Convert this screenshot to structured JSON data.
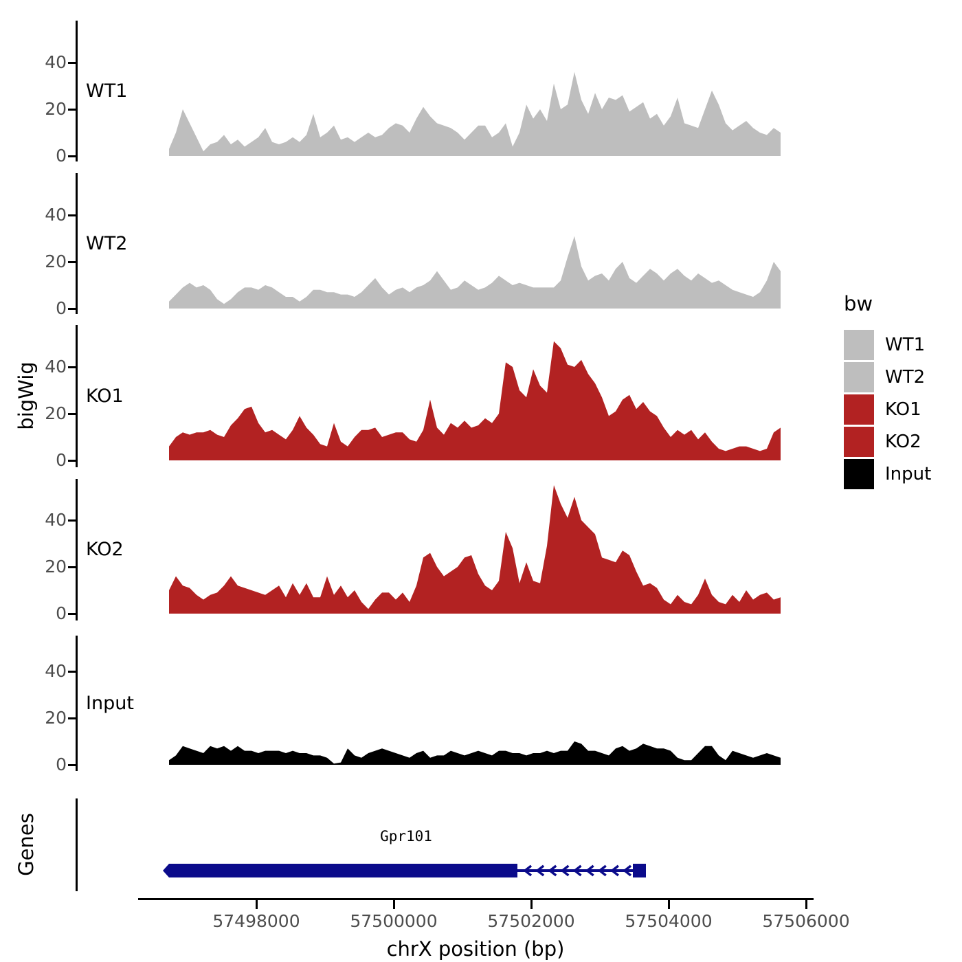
{
  "chart_data": {
    "type": "area",
    "title": "",
    "xlabel": "chrX position (bp)",
    "ylabel": "bigWig",
    "x_start_bp": 57496730,
    "x_step_bp": 100,
    "x_ticks": [
      57498000,
      57500000,
      57502000,
      57504000,
      57506000
    ],
    "x_axis_range_bp": [
      57496280,
      57506110
    ],
    "y_ticks_per_facet": [
      0,
      20,
      40
    ],
    "y_panel_max": 55,
    "grid": "off",
    "legend_position": "right",
    "facets": [
      {
        "label": "WT1",
        "color": "#BEBEBE",
        "values": [
          3,
          10,
          20,
          14,
          8,
          2,
          5,
          6,
          9,
          5,
          7,
          4,
          6,
          8,
          12,
          6,
          5,
          6,
          8,
          6,
          9,
          18,
          8,
          10,
          13,
          7,
          8,
          6,
          8,
          10,
          8,
          9,
          12,
          14,
          13,
          10,
          16,
          21,
          17,
          14,
          13,
          12,
          10,
          7,
          10,
          13,
          13,
          8,
          10,
          14,
          4,
          10,
          22,
          16,
          20,
          15,
          31,
          20,
          22,
          36,
          24,
          18,
          27,
          20,
          25,
          24,
          26,
          19,
          21,
          23,
          16,
          18,
          13,
          17,
          25,
          14,
          13,
          12,
          20,
          28,
          22,
          14,
          11,
          13,
          15,
          12,
          10,
          9,
          12,
          10
        ]
      },
      {
        "label": "WT2",
        "color": "#BEBEBE",
        "values": [
          3,
          6,
          9,
          11,
          9,
          10,
          8,
          4,
          2,
          4,
          7,
          9,
          9,
          8,
          10,
          9,
          7,
          5,
          5,
          3,
          5,
          8,
          8,
          7,
          7,
          6,
          6,
          5,
          7,
          10,
          13,
          9,
          6,
          8,
          9,
          7,
          9,
          10,
          12,
          16,
          12,
          8,
          9,
          12,
          10,
          8,
          9,
          11,
          14,
          12,
          10,
          11,
          10,
          9,
          9,
          9,
          9,
          12,
          22,
          31,
          18,
          12,
          14,
          15,
          12,
          17,
          20,
          13,
          11,
          14,
          17,
          15,
          12,
          15,
          17,
          14,
          12,
          15,
          13,
          11,
          12,
          10,
          8,
          7,
          6,
          5,
          7,
          12,
          20,
          16
        ]
      },
      {
        "label": "KO1",
        "color": "#B22222",
        "values": [
          6,
          10,
          12,
          11,
          12,
          12,
          13,
          11,
          10,
          15,
          18,
          22,
          23,
          16,
          12,
          13,
          11,
          9,
          13,
          19,
          14,
          11,
          7,
          6,
          16,
          8,
          6,
          10,
          13,
          13,
          14,
          10,
          11,
          12,
          12,
          9,
          8,
          13,
          26,
          14,
          11,
          16,
          14,
          17,
          14,
          15,
          18,
          16,
          20,
          42,
          40,
          30,
          27,
          39,
          32,
          29,
          51,
          48,
          41,
          40,
          43,
          37,
          33,
          27,
          19,
          21,
          26,
          28,
          22,
          25,
          21,
          19,
          14,
          10,
          13,
          11,
          13,
          9,
          12,
          8,
          5,
          4,
          5,
          6,
          6,
          5,
          4,
          5,
          12,
          14
        ]
      },
      {
        "label": "KO2",
        "color": "#B22222",
        "values": [
          10,
          16,
          12,
          11,
          8,
          6,
          8,
          9,
          12,
          16,
          12,
          11,
          10,
          9,
          8,
          10,
          12,
          7,
          13,
          8,
          13,
          7,
          7,
          16,
          8,
          12,
          7,
          10,
          5,
          2,
          6,
          9,
          9,
          6,
          9,
          5,
          12,
          24,
          26,
          20,
          16,
          18,
          20,
          24,
          25,
          17,
          12,
          10,
          14,
          35,
          28,
          13,
          22,
          14,
          13,
          29,
          55,
          47,
          41,
          50,
          40,
          37,
          34,
          24,
          23,
          22,
          27,
          25,
          18,
          12,
          13,
          11,
          6,
          4,
          8,
          5,
          4,
          8,
          15,
          8,
          5,
          4,
          8,
          5,
          10,
          6,
          8,
          9,
          6,
          7
        ]
      },
      {
        "label": "Input",
        "color": "#000000",
        "values": [
          2,
          4,
          8,
          7,
          6,
          5,
          8,
          7,
          8,
          6,
          8,
          6,
          6,
          5,
          6,
          6,
          6,
          5,
          6,
          5,
          5,
          4,
          4,
          3,
          0.5,
          1,
          7,
          4,
          3,
          5,
          6,
          7,
          6,
          5,
          4,
          3,
          5,
          6,
          3,
          4,
          4,
          6,
          5,
          4,
          5,
          6,
          5,
          4,
          6,
          6,
          5,
          5,
          4,
          5,
          5,
          6,
          5,
          6,
          6,
          10,
          9,
          6,
          6,
          5,
          4,
          7,
          8,
          6,
          7,
          9,
          8,
          7,
          7,
          6,
          3,
          2,
          2,
          5,
          8,
          8,
          4,
          2,
          6,
          5,
          4,
          3,
          4,
          5,
          4,
          3
        ]
      }
    ],
    "legend": {
      "title": "bw",
      "entries": [
        {
          "label": "WT1",
          "color": "#BEBEBE"
        },
        {
          "label": "WT2",
          "color": "#BEBEBE"
        },
        {
          "label": "KO1",
          "color": "#B22222"
        },
        {
          "label": "KO2",
          "color": "#B22222"
        },
        {
          "label": "Input",
          "color": "#000000"
        }
      ]
    },
    "genes_track": {
      "label": "Genes",
      "gene": {
        "name": "Gpr101",
        "strand": "-",
        "color": "#0B0B8B",
        "exons_bp": [
          [
            57496730,
            57501800
          ],
          [
            57503480,
            57503670
          ]
        ],
        "intron_bp": [
          57501800,
          57503480
        ],
        "intron_arrow_count": 9
      }
    }
  }
}
